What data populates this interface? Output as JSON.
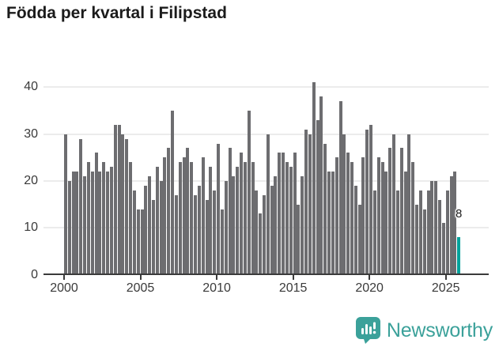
{
  "title": "Födda per kvartal i Filipstad",
  "chart_data": {
    "type": "bar",
    "title": "Födda per kvartal i Filipstad",
    "xlabel": "",
    "ylabel": "",
    "x_start": "2000 Q1",
    "x_end": "2025 Q4",
    "x_tick_labels": [
      "2000",
      "2005",
      "2010",
      "2015",
      "2020",
      "2025"
    ],
    "y_ticks": [
      0,
      10,
      20,
      30,
      40
    ],
    "ylim": [
      0,
      43
    ],
    "grid": "horizontal",
    "legend": "none",
    "bar_color": "#6d6d70",
    "highlight_color": "#00a29b",
    "series": [
      {
        "name": "Födda per kvartal",
        "values": [
          30,
          20,
          22,
          22,
          29,
          21,
          24,
          22,
          26,
          22,
          24,
          22,
          23,
          32,
          32,
          30,
          29,
          24,
          18,
          14,
          14,
          19,
          21,
          16,
          23,
          20,
          25,
          27,
          35,
          17,
          24,
          25,
          27,
          24,
          17,
          19,
          25,
          16,
          23,
          18,
          28,
          14,
          20,
          27,
          21,
          23,
          26,
          24,
          35,
          24,
          18,
          13,
          17,
          30,
          19,
          21,
          26,
          26,
          24,
          23,
          26,
          15,
          21,
          31,
          30,
          41,
          33,
          38,
          28,
          22,
          22,
          25,
          37,
          30,
          26,
          24,
          19,
          15,
          25,
          31,
          32,
          18,
          25,
          24,
          22,
          27,
          30,
          18,
          27,
          22,
          30,
          24,
          15,
          18,
          14,
          18,
          20,
          20,
          16,
          11,
          18,
          21,
          22,
          8
        ]
      }
    ],
    "highlight": {
      "index": 103,
      "label": "8",
      "quarter": "2025 Q4",
      "value": 8
    }
  },
  "footer": {
    "brand": "Newsworthy",
    "logo_color": "#3ba19a"
  }
}
